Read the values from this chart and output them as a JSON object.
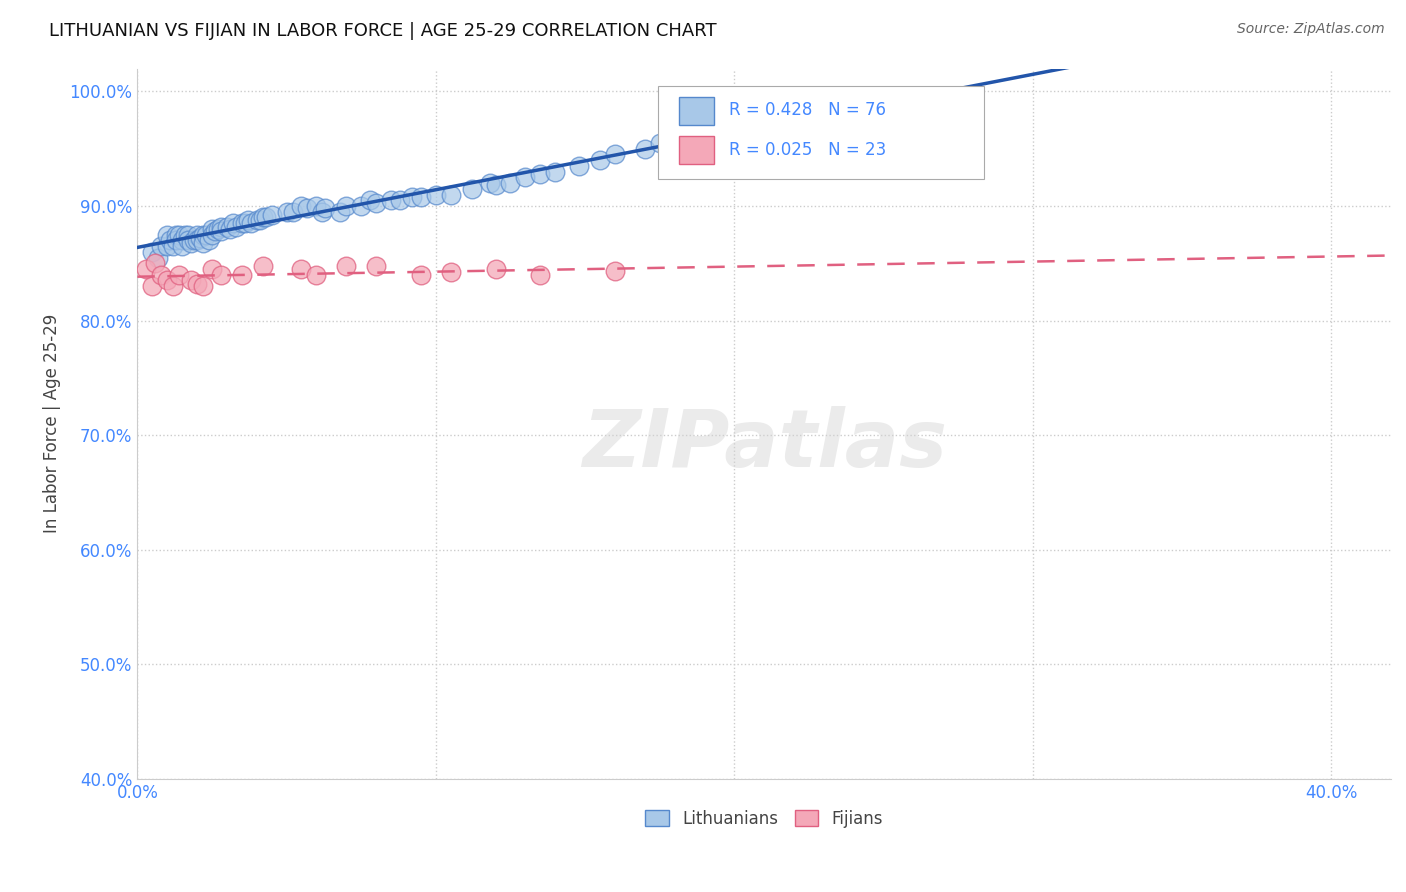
{
  "title": "LITHUANIAN VS FIJIAN IN LABOR FORCE | AGE 25-29 CORRELATION CHART",
  "source": "Source: ZipAtlas.com",
  "ylabel": "In Labor Force | Age 25-29",
  "xlim": [
    0.0,
    0.42
  ],
  "ylim": [
    0.4,
    1.02
  ],
  "yticks": [
    0.4,
    0.5,
    0.6,
    0.7,
    0.8,
    0.9,
    1.0
  ],
  "ytick_labels": [
    "40.0%",
    "50.0%",
    "60.0%",
    "70.0%",
    "80.0%",
    "90.0%",
    "100.0%"
  ],
  "xtick_positions": [
    0.0,
    0.1,
    0.2,
    0.3,
    0.4
  ],
  "xtick_labels": [
    "0.0%",
    "",
    "",
    "",
    "40.0%"
  ],
  "legend_R_blue": "R = 0.428",
  "legend_N_blue": "N = 76",
  "legend_R_pink": "R = 0.025",
  "legend_N_pink": "N = 23",
  "legend_label_blue": "Lithuanians",
  "legend_label_pink": "Fijians",
  "blue_color": "#A8C8E8",
  "pink_color": "#F4A8B8",
  "blue_edge_color": "#5588CC",
  "pink_edge_color": "#E06080",
  "blue_line_color": "#2255AA",
  "pink_line_color": "#E06080",
  "blue_x": [
    0.005,
    0.007,
    0.008,
    0.01,
    0.01,
    0.011,
    0.012,
    0.013,
    0.013,
    0.014,
    0.015,
    0.015,
    0.016,
    0.017,
    0.017,
    0.018,
    0.019,
    0.02,
    0.02,
    0.021,
    0.022,
    0.022,
    0.023,
    0.024,
    0.025,
    0.025,
    0.026,
    0.027,
    0.028,
    0.028,
    0.03,
    0.031,
    0.032,
    0.033,
    0.035,
    0.036,
    0.037,
    0.038,
    0.04,
    0.041,
    0.042,
    0.043,
    0.045,
    0.05,
    0.052,
    0.055,
    0.057,
    0.06,
    0.062,
    0.063,
    0.068,
    0.07,
    0.075,
    0.078,
    0.08,
    0.085,
    0.088,
    0.092,
    0.095,
    0.1,
    0.105,
    0.112,
    0.118,
    0.12,
    0.125,
    0.13,
    0.135,
    0.14,
    0.148,
    0.155,
    0.16,
    0.17,
    0.175,
    0.185,
    0.195,
    0.21
  ],
  "blue_y": [
    0.86,
    0.855,
    0.865,
    0.865,
    0.875,
    0.87,
    0.865,
    0.875,
    0.87,
    0.875,
    0.87,
    0.865,
    0.875,
    0.875,
    0.87,
    0.868,
    0.87,
    0.875,
    0.87,
    0.872,
    0.875,
    0.868,
    0.875,
    0.87,
    0.88,
    0.875,
    0.878,
    0.88,
    0.882,
    0.878,
    0.882,
    0.88,
    0.885,
    0.882,
    0.885,
    0.885,
    0.888,
    0.885,
    0.888,
    0.888,
    0.89,
    0.89,
    0.892,
    0.895,
    0.895,
    0.9,
    0.898,
    0.9,
    0.895,
    0.898,
    0.895,
    0.9,
    0.9,
    0.905,
    0.903,
    0.905,
    0.905,
    0.908,
    0.908,
    0.91,
    0.91,
    0.915,
    0.92,
    0.918,
    0.92,
    0.925,
    0.928,
    0.93,
    0.935,
    0.94,
    0.945,
    0.95,
    0.955,
    0.96,
    0.968,
    0.978
  ],
  "pink_x": [
    0.003,
    0.005,
    0.006,
    0.008,
    0.01,
    0.012,
    0.014,
    0.018,
    0.02,
    0.022,
    0.025,
    0.028,
    0.035,
    0.042,
    0.055,
    0.06,
    0.07,
    0.08,
    0.095,
    0.105,
    0.12,
    0.135,
    0.16
  ],
  "pink_y": [
    0.845,
    0.83,
    0.85,
    0.84,
    0.835,
    0.83,
    0.84,
    0.835,
    0.832,
    0.83,
    0.845,
    0.84,
    0.84,
    0.848,
    0.845,
    0.84,
    0.848,
    0.848,
    0.84,
    0.842,
    0.845,
    0.84,
    0.843
  ],
  "watermark_text": "ZIPatlas",
  "background_color": "#ffffff",
  "grid_color": "#cccccc",
  "title_color": "#111111",
  "axis_label_color": "#444444",
  "tick_label_color": "#4488FF",
  "source_color": "#666666"
}
